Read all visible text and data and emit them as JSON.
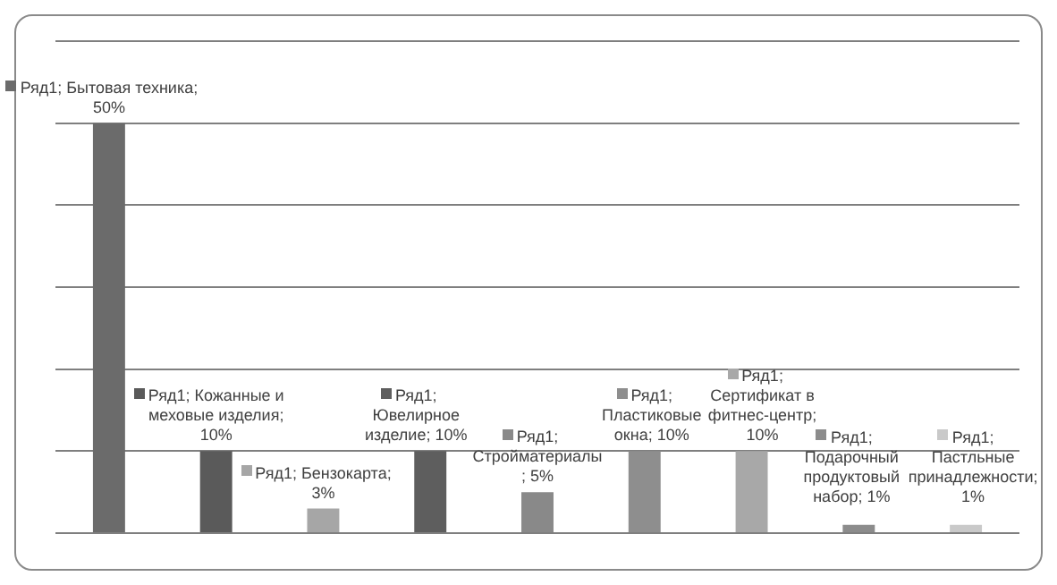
{
  "chart_data": {
    "type": "bar",
    "categories": [
      null,
      null,
      null,
      null,
      null,
      null,
      null,
      null,
      null
    ],
    "values": [
      50,
      10,
      3,
      10,
      5,
      10,
      10,
      1,
      1
    ],
    "colors": [
      "#6b6b6b",
      "#5a5a5a",
      "#a6a6a6",
      "#5e5e5e",
      "#898989",
      "#8e8e8e",
      "#a8a8a8",
      "#8c8c8c",
      "#c9c9c9"
    ],
    "value_labels": [
      "Ряд1; Бытовая техника; 50%",
      "Ряд1; Кожанные и меховые изделия; 10%",
      "Ряд1; Бензокарта; 3%",
      "Ряд1; Ювелирное изделие; 10%",
      "Ряд1; Стройматериалы ; 5%",
      "Ряд1; Пластиковые окна; 10%",
      "Ряд1; Сертификат в фитнес-центр; 10%",
      "Ряд1; Подарочный продуктовый набор; 1%",
      "Ряд1; Пастльные принадлежности; 1%"
    ],
    "ylim": [
      0,
      60
    ],
    "yticks": [
      {
        "value": 0,
        "label": null
      },
      {
        "value": 10,
        "label": null
      },
      {
        "value": 20,
        "label": null
      },
      {
        "value": 30,
        "label": null
      },
      {
        "value": 40,
        "label": null
      },
      {
        "value": 50,
        "label": null
      },
      {
        "value": 60,
        "label": null
      }
    ],
    "grid": "y"
  }
}
